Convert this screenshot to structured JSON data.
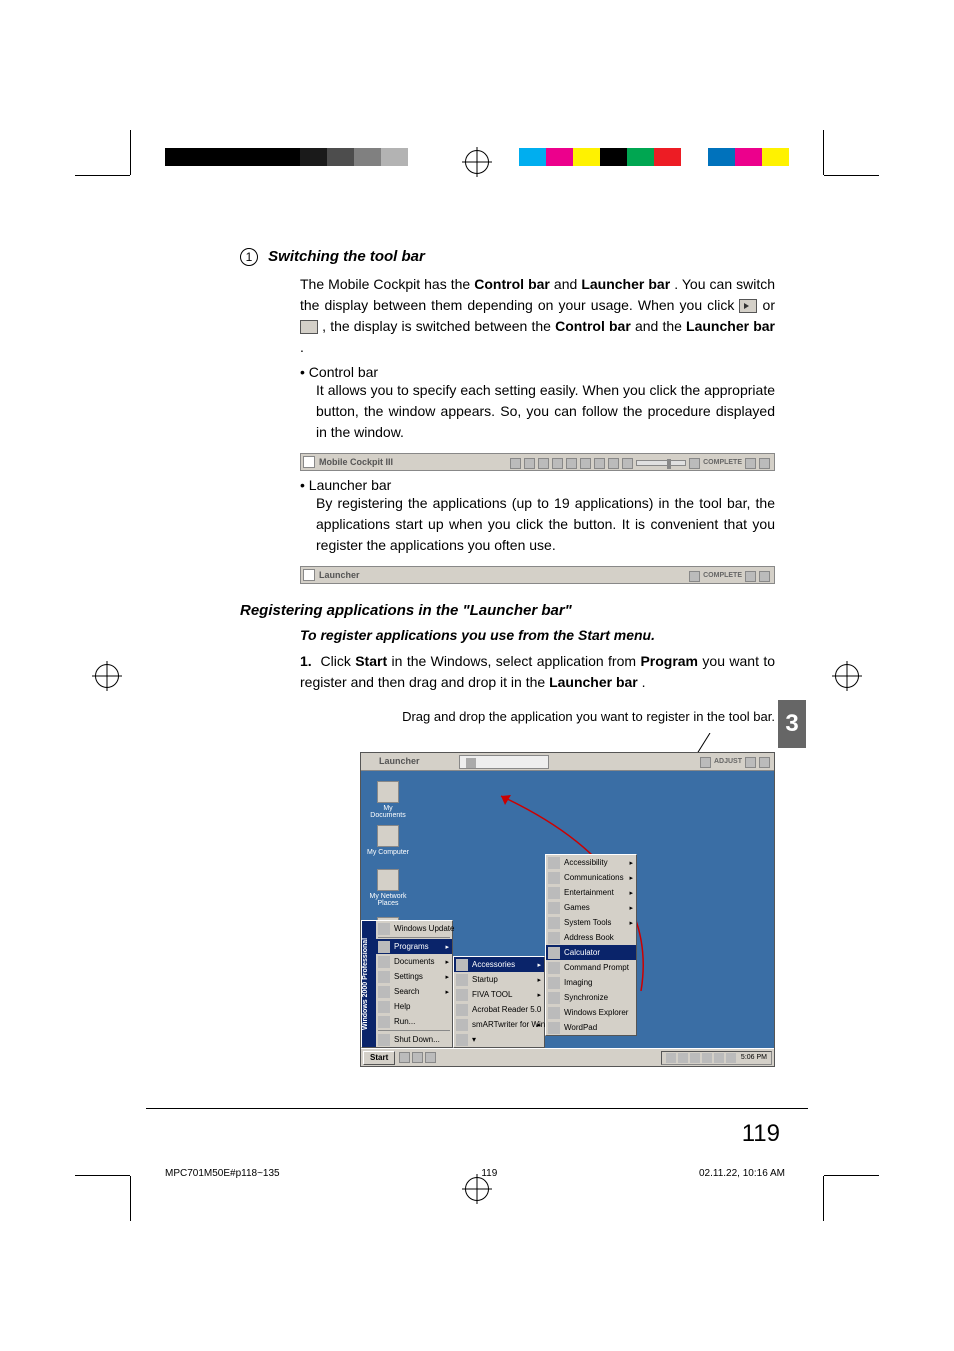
{
  "crop_colors_left": [
    "#000000",
    "#000000",
    "#000000",
    "#000000",
    "#000000",
    "#1a1a1a",
    "#4d4d4d",
    "#808080",
    "#b3b3b3",
    "#ffffff"
  ],
  "crop_colors_right": [
    "#00aeef",
    "#ec008c",
    "#fff200",
    "#000000",
    "#00a651",
    "#ed1c24",
    "#ffffff",
    "#0072bc",
    "#ec008c",
    "#fff200"
  ],
  "section1": {
    "number": "1",
    "title": "Switching the tool bar",
    "intro_1": "The Mobile Cockpit has the ",
    "control_bar": "Control bar",
    "intro_2": " and ",
    "launcher_bar": "Launcher bar",
    "intro_3": ". You can switch the display between them depending on your usage. When you click ",
    "intro_4": " or ",
    "intro_5": ", the display is switched between the ",
    "intro_6": " and the ",
    "intro_7": ".",
    "bullet1": "Control bar",
    "bullet1_text": "It allows you to specify each setting easily. When you click the appropriate button, the window appears. So, you can follow the procedure displayed in the window.",
    "toolbar1_label": "Mobile Cockpit III",
    "toolbar1_right": "COMPLETE",
    "bullet2": "Launcher bar",
    "bullet2_text": "By registering the applications (up to 19 applications) in the tool bar, the applications start up when you click the button. It is convenient that you register the applications you often use.",
    "toolbar2_label": "Launcher",
    "toolbar2_right": "COMPLETE"
  },
  "section2": {
    "title": "Registering applications in the \"Launcher bar\"",
    "subtitle": "To register applications you use from the Start menu.",
    "step_num": "1.",
    "step_1": "Click ",
    "start": "Start",
    "step_2": " in the Windows, select application from ",
    "program": "Program",
    "step_3": " you want to register and then drag and drop it in the ",
    "launcher_bar": "Launcher bar",
    "step_4": ".",
    "caption": "Drag and drop the application you want to register in the tool bar."
  },
  "screenshot": {
    "launcher_label": "Launcher",
    "launcher_right": "ADJUST",
    "desktop_icons": [
      "My Documents",
      "My Computer",
      "My Network Places",
      ""
    ],
    "start_banner": "Windows 2000 Professional",
    "start_menu": [
      {
        "label": "Windows Update",
        "top": true
      },
      {
        "label": "Programs",
        "arrow": true,
        "hl": true
      },
      {
        "label": "Documents",
        "arrow": true
      },
      {
        "label": "Settings",
        "arrow": true
      },
      {
        "label": "Search",
        "arrow": true
      },
      {
        "label": "Help"
      },
      {
        "label": "Run..."
      },
      {
        "label": "Shut Down..."
      }
    ],
    "submenu1": [
      {
        "label": "Accessories",
        "arrow": true,
        "hl": true
      },
      {
        "label": "Startup",
        "arrow": true
      },
      {
        "label": "FIVA TOOL",
        "arrow": true
      },
      {
        "label": "Acrobat Reader 5.0"
      },
      {
        "label": "smARTwriter for Windows NT",
        "arrow": true
      },
      {
        "label": "▾"
      }
    ],
    "submenu2": [
      {
        "label": "Accessibility",
        "arrow": true
      },
      {
        "label": "Communications",
        "arrow": true
      },
      {
        "label": "Entertainment",
        "arrow": true
      },
      {
        "label": "Games",
        "arrow": true
      },
      {
        "label": "System Tools",
        "arrow": true
      },
      {
        "label": "Address Book"
      },
      {
        "label": "Calculator",
        "hl": true
      },
      {
        "label": "Command Prompt"
      },
      {
        "label": "Imaging"
      },
      {
        "label": "Synchronize"
      },
      {
        "label": "Windows Explorer"
      },
      {
        "label": "WordPad"
      }
    ],
    "start_btn": "Start",
    "clock": "5:06 PM"
  },
  "page_number": "119",
  "chapter_tab": "3",
  "footer": {
    "file": "MPC701M50E#p118~135",
    "page": "119",
    "timestamp": "02.11.22, 10:16 AM"
  },
  "colors": {
    "desktop_bg": "#3a6ea5",
    "win_gray": "#d4d0c8",
    "highlight": "#0a246a",
    "tab_gray": "#666666"
  }
}
